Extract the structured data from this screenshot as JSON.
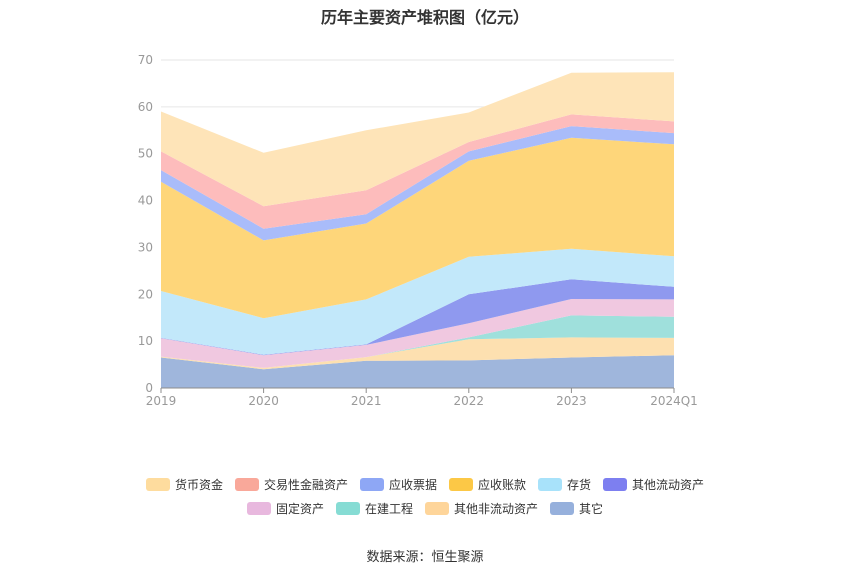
{
  "chart_data": {
    "type": "area",
    "stacked": true,
    "title": "历年主要资产堆积图（亿元）",
    "categories": [
      "2019",
      "2020",
      "2021",
      "2022",
      "2023",
      "2024Q1"
    ],
    "ylim": [
      0,
      70
    ],
    "yticks": [
      0,
      10,
      20,
      30,
      40,
      50,
      60,
      70
    ],
    "grid": true,
    "legend_position": "bottom",
    "series": [
      {
        "name": "其它",
        "color": "#9fb6dc",
        "values": [
          6.5,
          4.0,
          5.8,
          5.9,
          6.5,
          7.0
        ]
      },
      {
        "name": "其他非流动资产",
        "color": "#fde0b0",
        "values": [
          0.2,
          0.3,
          0.8,
          4.5,
          4.3,
          3.7
        ]
      },
      {
        "name": "在建工程",
        "color": "#9fe0dc",
        "values": [
          0.0,
          0.0,
          0.0,
          0.4,
          4.7,
          4.5
        ]
      },
      {
        "name": "固定资产",
        "color": "#f0c8e0",
        "values": [
          3.9,
          2.7,
          2.6,
          3.0,
          3.5,
          3.7
        ]
      },
      {
        "name": "其他流动资产",
        "color": "#8f99ef",
        "values": [
          0.1,
          0.1,
          0.1,
          6.2,
          4.2,
          2.7
        ]
      },
      {
        "name": "存货",
        "color": "#c2e8fa",
        "values": [
          10.0,
          7.8,
          9.6,
          8.0,
          6.5,
          6.5
        ]
      },
      {
        "name": "应收账款",
        "color": "#fed67a",
        "values": [
          23.3,
          16.6,
          16.2,
          20.5,
          23.7,
          23.9
        ]
      },
      {
        "name": "应收票据",
        "color": "#a9bcfa",
        "values": [
          2.5,
          2.5,
          2.0,
          2.0,
          2.5,
          2.4
        ]
      },
      {
        "name": "交易性金融资产",
        "color": "#fdbcbc",
        "values": [
          4.0,
          4.8,
          5.1,
          2.0,
          2.5,
          2.5
        ]
      },
      {
        "name": "货币资金",
        "color": "#fee4b8",
        "values": [
          8.5,
          11.4,
          12.8,
          6.3,
          8.9,
          10.5
        ]
      }
    ]
  },
  "legend": {
    "rows": [
      [
        {
          "label": "货币资金",
          "color": "#fedc9e"
        },
        {
          "label": "交易性金融资产",
          "color": "#f9a89a"
        },
        {
          "label": "应收票据",
          "color": "#8ea7f5"
        },
        {
          "label": "应收账款",
          "color": "#fcc846"
        },
        {
          "label": "存货",
          "color": "#a8e2fa"
        },
        {
          "label": "其他流动资产",
          "color": "#7d7ff0"
        }
      ],
      [
        {
          "label": "固定资产",
          "color": "#e8b8de"
        },
        {
          "label": "在建工程",
          "color": "#86dcd4"
        },
        {
          "label": "其他非流动资产",
          "color": "#fed59a"
        },
        {
          "label": "其它",
          "color": "#96b0dc"
        }
      ]
    ]
  },
  "footer": {
    "source": "数据来源：恒生聚源"
  }
}
